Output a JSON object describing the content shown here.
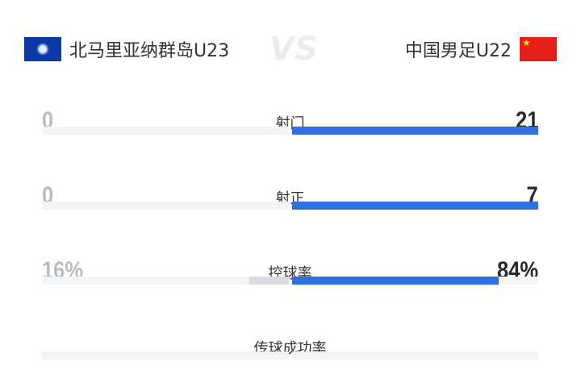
{
  "header": {
    "home_team": "北马里亚纳群岛U23",
    "away_team": "中国男足U22",
    "vs_label": "VS",
    "home_flag_icon": "northern-mariana-islands-flag",
    "away_flag_icon": "china-flag"
  },
  "colors": {
    "away_bar": "#2f6fdf",
    "home_bar": "#d9dce1",
    "track": "#f3f4f6"
  },
  "stats": [
    {
      "label": "射门",
      "home": "0",
      "away": "21",
      "home_share": 0,
      "away_share": 100
    },
    {
      "label": "射正",
      "home": "0",
      "away": "7",
      "home_share": 0,
      "away_share": 100
    },
    {
      "label": "控球率",
      "home": "16%",
      "away": "84%",
      "home_share": 16,
      "away_share": 84
    },
    {
      "label": "传球成功率",
      "home": "",
      "away": "",
      "home_share": 0,
      "away_share": 0
    }
  ]
}
